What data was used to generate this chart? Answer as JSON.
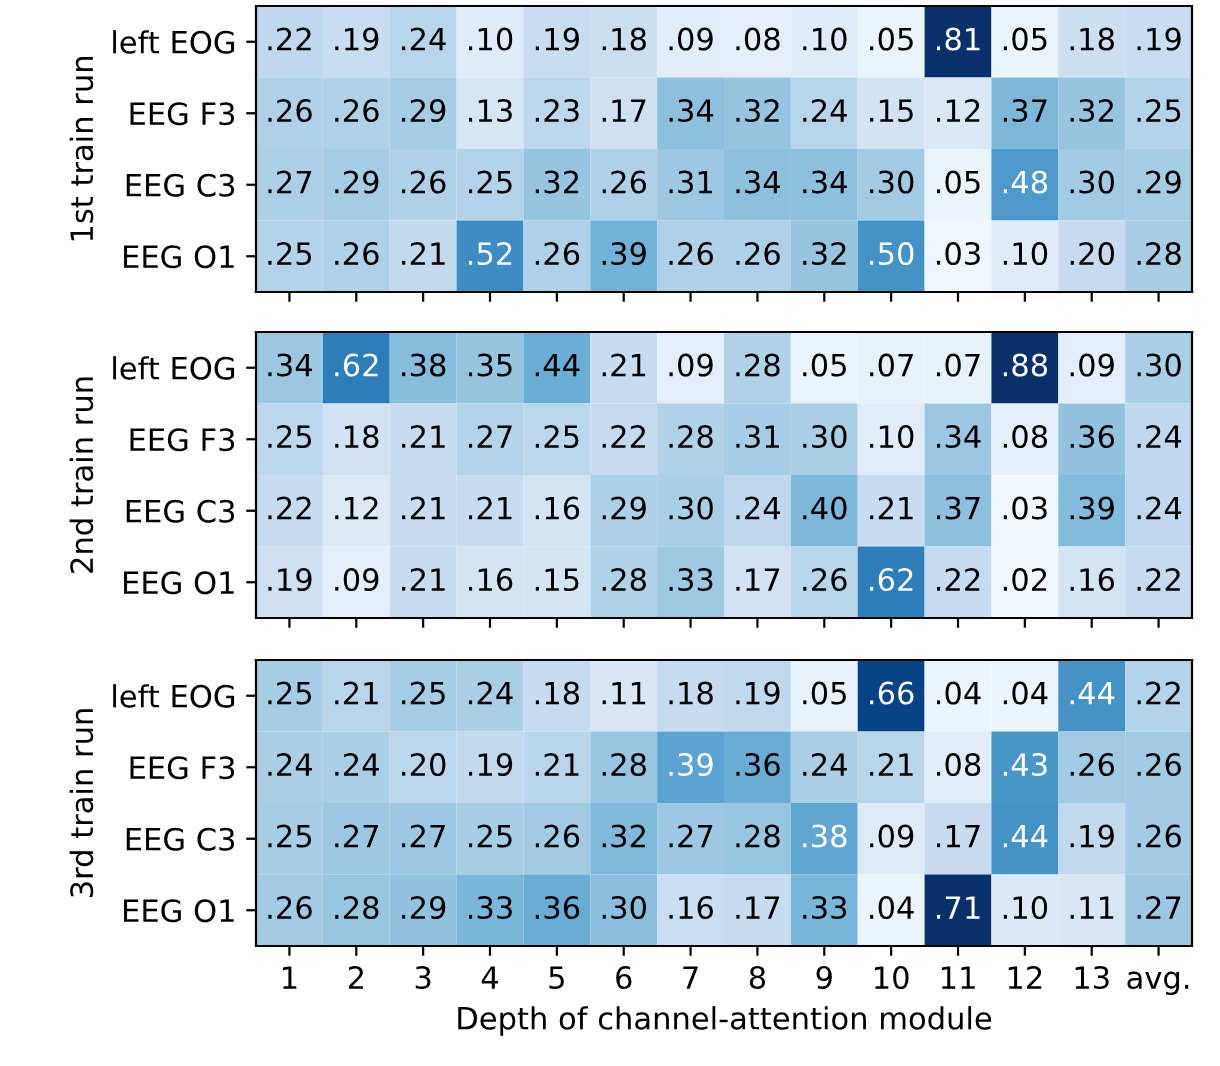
{
  "chart_data": [
    {
      "type": "heatmap",
      "ylabel": "1st train run",
      "tick_labels": "y",
      "categories": [
        null,
        null,
        null,
        null,
        null,
        null,
        null,
        null,
        null,
        null,
        null,
        null,
        null,
        null
      ],
      "y_categories": [
        "left EOG",
        "EEG F3",
        "EEG C3",
        "EEG O1"
      ],
      "cell_labels": [
        [
          ".22",
          ".19",
          ".24",
          ".10",
          ".19",
          ".18",
          ".09",
          ".08",
          ".10",
          ".05",
          ".81",
          ".05",
          ".18",
          ".19"
        ],
        [
          ".26",
          ".26",
          ".29",
          ".13",
          ".23",
          ".17",
          ".34",
          ".32",
          ".24",
          ".15",
          ".12",
          ".37",
          ".32",
          ".25"
        ],
        [
          ".27",
          ".29",
          ".26",
          ".25",
          ".32",
          ".26",
          ".31",
          ".34",
          ".34",
          ".30",
          ".05",
          ".48",
          ".30",
          ".29"
        ],
        [
          ".25",
          ".26",
          ".21",
          ".52",
          ".26",
          ".39",
          ".26",
          ".26",
          ".32",
          ".50",
          ".03",
          ".10",
          ".20",
          ".28"
        ]
      ],
      "cells": [
        [
          0.22,
          0.19,
          0.24,
          0.1,
          0.19,
          0.18,
          0.09,
          0.08,
          0.1,
          0.05,
          0.81,
          0.05,
          0.18,
          0.19
        ],
        [
          0.26,
          0.26,
          0.29,
          0.13,
          0.23,
          0.17,
          0.34,
          0.32,
          0.24,
          0.15,
          0.12,
          0.37,
          0.32,
          0.25
        ],
        [
          0.27,
          0.29,
          0.26,
          0.25,
          0.32,
          0.26,
          0.31,
          0.34,
          0.34,
          0.3,
          0.05,
          0.48,
          0.3,
          0.29
        ],
        [
          0.25,
          0.26,
          0.21,
          0.52,
          0.26,
          0.39,
          0.26,
          0.26,
          0.32,
          0.5,
          0.03,
          0.1,
          0.2,
          0.28
        ]
      ]
    },
    {
      "type": "heatmap",
      "ylabel": "2nd train run",
      "tick_labels": "y",
      "categories": [
        null,
        null,
        null,
        null,
        null,
        null,
        null,
        null,
        null,
        null,
        null,
        null,
        null,
        null
      ],
      "y_categories": [
        "left EOG",
        "EEG F3",
        "EEG C3",
        "EEG O1"
      ],
      "cell_labels": [
        [
          ".34",
          ".62",
          ".38",
          ".35",
          ".44",
          ".21",
          ".09",
          ".28",
          ".05",
          ".07",
          ".07",
          ".88",
          ".09",
          ".30"
        ],
        [
          ".25",
          ".18",
          ".21",
          ".27",
          ".25",
          ".22",
          ".28",
          ".31",
          ".30",
          ".10",
          ".34",
          ".08",
          ".36",
          ".24"
        ],
        [
          ".22",
          ".12",
          ".21",
          ".21",
          ".16",
          ".29",
          ".30",
          ".24",
          ".40",
          ".21",
          ".37",
          ".03",
          ".39",
          ".24"
        ],
        [
          ".19",
          ".09",
          ".21",
          ".16",
          ".15",
          ".28",
          ".33",
          ".17",
          ".26",
          ".62",
          ".22",
          ".02",
          ".16",
          ".22"
        ]
      ],
      "cells": [
        [
          0.34,
          0.62,
          0.38,
          0.35,
          0.44,
          0.21,
          0.09,
          0.28,
          0.05,
          0.07,
          0.07,
          0.88,
          0.09,
          0.3
        ],
        [
          0.25,
          0.18,
          0.21,
          0.27,
          0.25,
          0.22,
          0.28,
          0.31,
          0.3,
          0.1,
          0.34,
          0.08,
          0.36,
          0.24
        ],
        [
          0.22,
          0.12,
          0.21,
          0.21,
          0.16,
          0.29,
          0.3,
          0.24,
          0.4,
          0.21,
          0.37,
          0.03,
          0.39,
          0.24
        ],
        [
          0.19,
          0.09,
          0.21,
          0.16,
          0.15,
          0.28,
          0.33,
          0.17,
          0.26,
          0.62,
          0.22,
          0.02,
          0.16,
          0.22
        ]
      ]
    },
    {
      "type": "heatmap",
      "ylabel": "3rd train run",
      "xlabel": "Depth of channel-attention module",
      "categories": [
        "1",
        "2",
        "3",
        "4",
        "5",
        "6",
        "7",
        "8",
        "9",
        "10",
        "11",
        "12",
        "13",
        "avg."
      ],
      "y_categories": [
        "left EOG",
        "EEG F3",
        "EEG C3",
        "EEG O1"
      ],
      "cell_labels": [
        [
          ".25",
          ".21",
          ".25",
          ".24",
          ".18",
          ".11",
          ".18",
          ".19",
          ".05",
          ".66",
          ".04",
          ".04",
          ".44",
          ".22"
        ],
        [
          ".24",
          ".24",
          ".20",
          ".19",
          ".21",
          ".28",
          ".39",
          ".36",
          ".24",
          ".21",
          ".08",
          ".43",
          ".26",
          ".26"
        ],
        [
          ".25",
          ".27",
          ".27",
          ".25",
          ".26",
          ".32",
          ".27",
          ".28",
          ".38",
          ".09",
          ".17",
          ".44",
          ".19",
          ".26"
        ],
        [
          ".26",
          ".28",
          ".29",
          ".33",
          ".36",
          ".30",
          ".16",
          ".17",
          ".33",
          ".04",
          ".71",
          ".10",
          ".11",
          ".27"
        ]
      ],
      "cells": [
        [
          0.25,
          0.21,
          0.25,
          0.24,
          0.18,
          0.11,
          0.18,
          0.19,
          0.05,
          0.66,
          0.04,
          0.04,
          0.44,
          0.22
        ],
        [
          0.24,
          0.24,
          0.2,
          0.19,
          0.21,
          0.28,
          0.39,
          0.36,
          0.24,
          0.21,
          0.08,
          0.43,
          0.26,
          0.26
        ],
        [
          0.25,
          0.27,
          0.27,
          0.25,
          0.26,
          0.32,
          0.27,
          0.28,
          0.38,
          0.09,
          0.17,
          0.44,
          0.19,
          0.26
        ],
        [
          0.26,
          0.28,
          0.29,
          0.33,
          0.36,
          0.3,
          0.16,
          0.17,
          0.33,
          0.04,
          0.71,
          0.1,
          0.11,
          0.27
        ]
      ]
    }
  ]
}
